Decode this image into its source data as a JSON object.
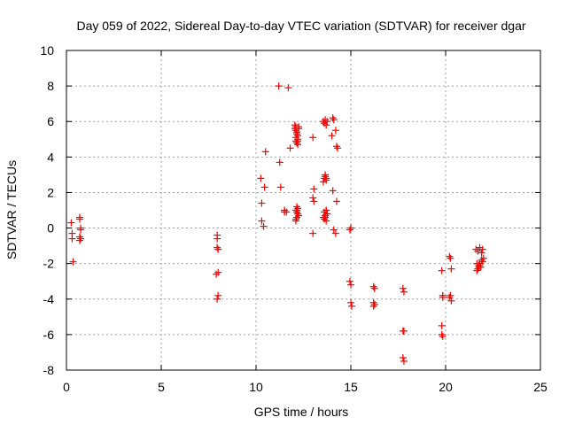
{
  "chart_data": {
    "type": "scatter",
    "title": "Day 059 of 2022, Sidereal Day-to-day VTEC variation (SDTVAR) for receiver dgar",
    "xlabel": "GPS time / hours",
    "ylabel": "SDTVAR / TECUs",
    "xlim": [
      0,
      25
    ],
    "ylim": [
      -8,
      10
    ],
    "xticks": [
      0,
      5,
      10,
      15,
      20,
      25
    ],
    "yticks": [
      -8,
      -6,
      -4,
      -2,
      0,
      2,
      4,
      6,
      8,
      10
    ],
    "grid": true,
    "marker": "+",
    "color": "#ff0000",
    "series": [
      {
        "name": "SDTVAR",
        "x": [
          0.25,
          0.3,
          0.3,
          0.35,
          0.7,
          0.7,
          0.75,
          0.75,
          0.75,
          0.7,
          0.7,
          7.95,
          7.95,
          8.0,
          7.95,
          8.0,
          7.9,
          8.0,
          7.95,
          10.25,
          10.3,
          10.3,
          10.4,
          10.45,
          10.5,
          11.2,
          11.25,
          11.3,
          11.5,
          11.5,
          11.6,
          11.7,
          11.8,
          11.5,
          12.05,
          12.1,
          12.1,
          12.15,
          12.2,
          12.1,
          12.15,
          12.2,
          12.25,
          12.1,
          12.2,
          12.05,
          12.15,
          12.2,
          12.25,
          12.15,
          12.1,
          12.2,
          12.15,
          12.1,
          12.2,
          12.15,
          12.25,
          12.1,
          12.15,
          12.2,
          13.0,
          13.05,
          13.0,
          13.05,
          13.0,
          13.55,
          13.6,
          13.65,
          13.7,
          13.75,
          13.6,
          13.65,
          13.7,
          13.55,
          13.65,
          13.7,
          13.6,
          13.75,
          13.65,
          13.7,
          13.6,
          13.65,
          13.7,
          13.75,
          13.55,
          13.7,
          14.05,
          14.1,
          14.0,
          14.2,
          14.25,
          14.3,
          14.05,
          14.1,
          14.2,
          14.25,
          14.95,
          15.0,
          14.95,
          15.0,
          15.0,
          15.05,
          16.2,
          16.25,
          16.2,
          16.25,
          16.2,
          17.75,
          17.8,
          17.75,
          17.8,
          17.75,
          17.8,
          19.8,
          19.85,
          19.8,
          19.85,
          19.8,
          19.85,
          20.2,
          20.25,
          20.3,
          20.2,
          20.3,
          20.25,
          21.6,
          21.7,
          21.8,
          21.9,
          21.95,
          21.65,
          21.75,
          21.85,
          21.95,
          21.7,
          21.8,
          21.9,
          22.0,
          21.65,
          21.75
        ],
        "y": [
          0.3,
          -0.3,
          -0.6,
          -1.9,
          0.6,
          0.5,
          0.0,
          -0.1,
          -0.6,
          -0.7,
          -0.5,
          -0.4,
          -0.6,
          -1.2,
          -1.1,
          -2.5,
          -2.6,
          -3.8,
          -4.0,
          2.8,
          1.4,
          0.4,
          0.1,
          2.3,
          4.3,
          8.0,
          3.7,
          2.3,
          1.0,
          0.9,
          0.9,
          7.9,
          4.5,
          1.0,
          5.8,
          5.7,
          5.5,
          5.3,
          5.0,
          4.9,
          4.8,
          4.7,
          5.7,
          5.1,
          5.2,
          5.6,
          5.4,
          4.9,
          5.6,
          1.2,
          1.0,
          0.8,
          0.6,
          0.4,
          1.1,
          0.9,
          0.7,
          0.5,
          1.0,
          0.8,
          5.1,
          2.2,
          1.7,
          1.5,
          -0.3,
          6.0,
          5.9,
          6.1,
          5.8,
          6.0,
          2.8,
          2.9,
          2.7,
          2.6,
          3.0,
          2.8,
          0.9,
          0.8,
          0.6,
          1.0,
          0.5,
          0.7,
          0.4,
          0.8,
          0.6,
          1.0,
          6.2,
          6.1,
          5.2,
          5.5,
          4.6,
          4.5,
          2.1,
          -0.1,
          -0.3,
          1.5,
          -0.1,
          0.0,
          -3.0,
          -3.2,
          -4.2,
          -4.4,
          -3.3,
          -3.4,
          -4.2,
          -4.3,
          -4.4,
          -3.4,
          -3.6,
          -5.8,
          -5.8,
          -7.3,
          -7.5,
          -2.4,
          -3.9,
          -5.5,
          -6.1,
          -6.0,
          -3.8,
          -1.6,
          -1.7,
          -2.3,
          -3.9,
          -4.1,
          -3.8,
          -1.2,
          -1.3,
          -1.1,
          -1.4,
          -1.2,
          -2.0,
          -2.1,
          -2.2,
          -1.9,
          -2.3,
          -2.0,
          -1.8,
          -1.7,
          -2.4,
          -2.2
        ]
      }
    ]
  }
}
